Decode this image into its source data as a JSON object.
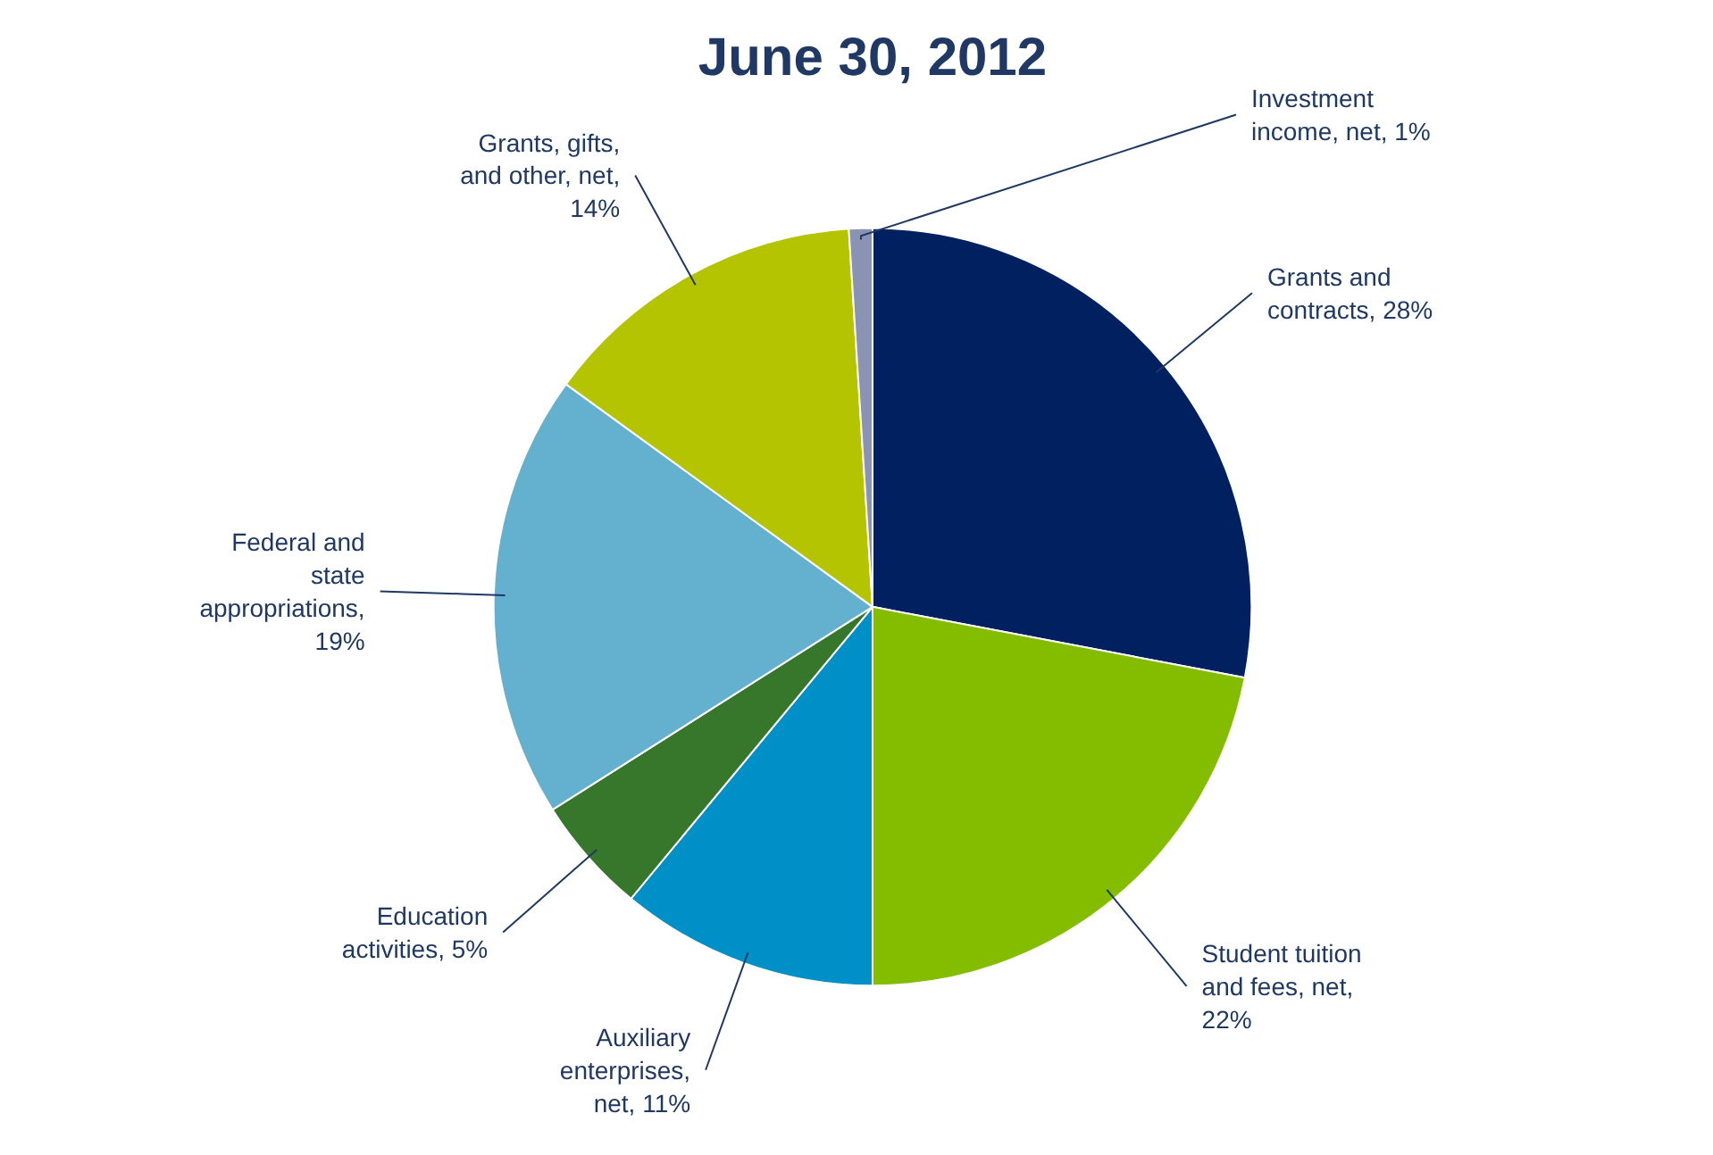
{
  "chart_data": {
    "type": "pie",
    "title": "June 30, 2012",
    "categories": [
      "Grants and contracts, 28%",
      "Student tuition and fees, net, 22%",
      "Auxiliary enterprises, net, 11%",
      "Education activities, 5%",
      "Federal and state appropriations, 19%",
      "Grants, gifts, and other, net, 14%",
      "Investment income, net, 1%"
    ],
    "values": [
      28,
      22,
      11,
      5,
      19,
      14,
      1
    ],
    "colors": [
      "#002060",
      "#84bc00",
      "#0090c8",
      "#36772b",
      "#64b0cf",
      "#b5c400",
      "#8a93b3"
    ]
  }
}
